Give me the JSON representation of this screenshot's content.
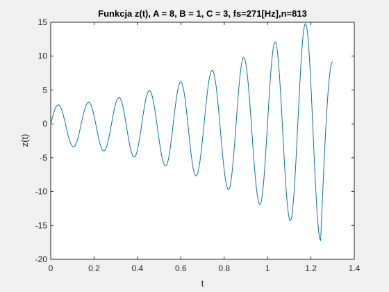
{
  "chart_data": {
    "type": "line",
    "title": "Funkcja z(t), A = 8, B = 1, C = 3, fs=271[Hz],n=813",
    "xlabel": "t",
    "ylabel": "z(t)",
    "xlim": [
      0,
      1.4
    ],
    "ylim": [
      -20,
      15
    ],
    "xticks": [
      0,
      0.2,
      0.4,
      0.6,
      0.8,
      1,
      1.2,
      1.4
    ],
    "xtick_labels": [
      "0",
      "0.2",
      "0.4",
      "0.6",
      "0.8",
      "1",
      "1.2",
      "1.4"
    ],
    "yticks": [
      -20,
      -15,
      -10,
      -5,
      0,
      5,
      10,
      15
    ],
    "ytick_labels": [
      "-20",
      "-15",
      "-10",
      "-5",
      "0",
      "5",
      "10",
      "15"
    ],
    "grid": false,
    "line_color": "#0072bd",
    "series": [
      {
        "x": [
          0,
          0.035,
          0.105,
          0.175,
          0.245,
          0.315,
          0.385,
          0.455,
          0.53,
          0.6,
          0.67,
          0.745,
          0.82,
          0.89,
          0.965,
          1.035,
          1.105,
          1.175,
          1.245,
          1.3
        ],
        "y": [
          0,
          2.8,
          -3.4,
          3.2,
          -4.0,
          3.9,
          -4.9,
          4.9,
          -6.2,
          6.2,
          -7.7,
          7.9,
          -9.7,
          9.8,
          -11.9,
          12.1,
          -14.3,
          14.8,
          -17.2,
          9.2
        ]
      }
    ]
  }
}
